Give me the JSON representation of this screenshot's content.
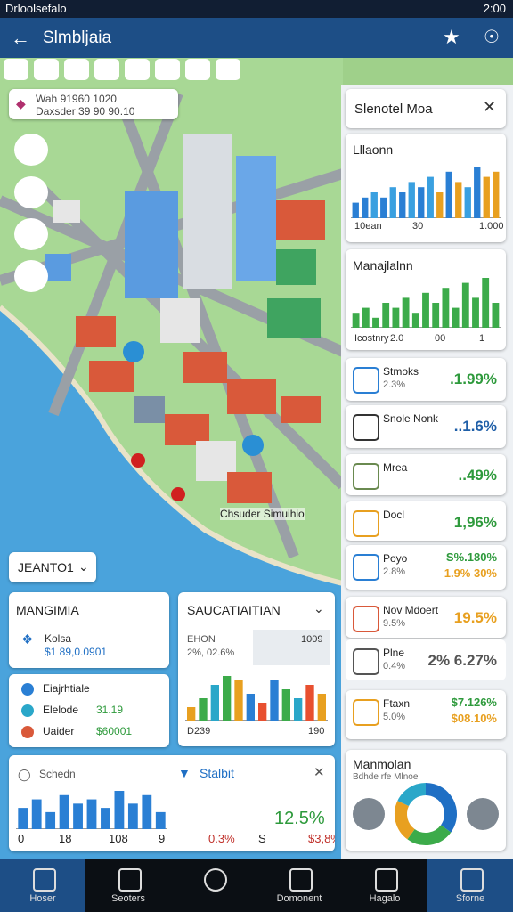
{
  "status_bar": {
    "carrier": "Drloolsefalo",
    "time": "2:00"
  },
  "app_bar": {
    "title": "Slmbljaia"
  },
  "map": {
    "info_line1": "Wah   91960 1020",
    "info_line2": "Daxsder 39 90 90.10",
    "place_label": "Chsuder Simuihio",
    "dropdown": "JEANTO1"
  },
  "side_panel": {
    "title": "Slenotel Moa",
    "chart1": {
      "title": "Lllaonn",
      "bars": [
        3,
        4,
        5,
        4,
        6,
        5,
        7,
        6,
        8,
        5,
        9,
        7,
        6,
        10,
        8,
        9
      ],
      "colors": [
        "#2a7fd4",
        "#2a7fd4",
        "#3aa0e0",
        "#2a7fd4",
        "#3aa0e0",
        "#2a7fd4",
        "#3aa0e0",
        "#2a7fd4",
        "#3aa0e0",
        "#e8a020",
        "#2a7fd4",
        "#e8a020",
        "#3aa0e0",
        "#2a7fd4",
        "#e8a020",
        "#e8a020"
      ],
      "labels": [
        "10ean",
        "30",
        "1.000"
      ]
    },
    "chart2": {
      "title": "Manajlalnn",
      "bars": [
        3,
        4,
        2,
        5,
        4,
        6,
        3,
        7,
        5,
        8,
        4,
        9,
        6,
        10,
        5
      ],
      "colors": [
        "#3cab4a",
        "#3cab4a",
        "#3cab4a",
        "#3cab4a",
        "#3cab4a",
        "#3cab4a",
        "#3cab4a",
        "#3cab4a",
        "#3cab4a",
        "#3cab4a",
        "#3cab4a",
        "#3cab4a",
        "#3cab4a",
        "#3cab4a",
        "#3cab4a"
      ],
      "labels": [
        "Icostnry",
        "2.0",
        "00",
        "1"
      ]
    },
    "items": [
      {
        "name": "Stmoks",
        "sub": "2.3%",
        "value": ".1.99%",
        "color": "#2e9a3c"
      },
      {
        "name": "Snole Nonk",
        "sub": "",
        "value": "..1.6%",
        "color": "#1f5fa8"
      },
      {
        "name": "Mrea",
        "sub": "",
        "value": "..49%",
        "color": "#2e9a3c"
      },
      {
        "name": "Docl",
        "sub": "",
        "value": "1,96%",
        "color": "#2e9a3c"
      },
      {
        "name": "Poyo",
        "sub": "2.8%",
        "value": "S%.180%",
        "value2": "1.9% 30%",
        "color": "#2e9a3c"
      },
      {
        "name": "Nov Mdoert",
        "sub": "9.5%",
        "value": "19.5%",
        "color": "#e8a020"
      },
      {
        "name": "Plne",
        "sub": "0.4%",
        "value": "2% 6.27%",
        "color": "#555555"
      },
      {
        "name": "Ftaxn",
        "sub": "5.0%",
        "value": "$7.126%",
        "value2": "$08.10%",
        "color": "#2e9a3c"
      }
    ],
    "summary": {
      "title": "Manmolan",
      "subtitle": "Bdhde rfe Mlnoe",
      "donut": [
        35,
        25,
        22,
        18
      ],
      "colors": [
        "#1f6fc4",
        "#3cab4a",
        "#e8a020",
        "#2aa7c9"
      ]
    }
  },
  "cards": {
    "card1": {
      "title": "MANGIMIA",
      "name": "Kolsa",
      "value": "$1 89,0.0901"
    },
    "card2": {
      "title": "SAUCATIAITIAN",
      "line1": "EHON",
      "line2": "2%, 02.6%",
      "right": "1009",
      "bars": [
        3,
        5,
        8,
        10,
        9,
        6,
        4,
        9,
        7,
        5,
        8,
        6
      ],
      "colors": [
        "#e8a020",
        "#3cab4a",
        "#2aa7c9",
        "#3cab4a",
        "#e8a020",
        "#2a7fd4",
        "#e85030",
        "#2a7fd4",
        "#3cab4a",
        "#2aa7c9",
        "#e85030",
        "#e8a020"
      ],
      "labels": [
        "D239",
        "190"
      ]
    },
    "card3": {
      "rows": [
        {
          "name": "Eiajrhtiale",
          "value": ""
        },
        {
          "name": "Elelode",
          "value": "31.19"
        },
        {
          "name": "Uaider",
          "value": "$60001"
        }
      ]
    },
    "card4": {
      "left_title": "Schedn",
      "right_title": "Stalbit",
      "big": "12.5%",
      "bars": [
        5,
        7,
        4,
        8,
        6,
        7,
        5,
        9,
        6,
        8,
        4
      ],
      "labels": [
        "0",
        "18",
        "108",
        "9",
        "0.3%",
        "S",
        "$3,8%"
      ]
    }
  },
  "bottom_nav": [
    "Hoser",
    "Seoters",
    "",
    "Domonent",
    "Hagalo",
    "Sforne"
  ]
}
